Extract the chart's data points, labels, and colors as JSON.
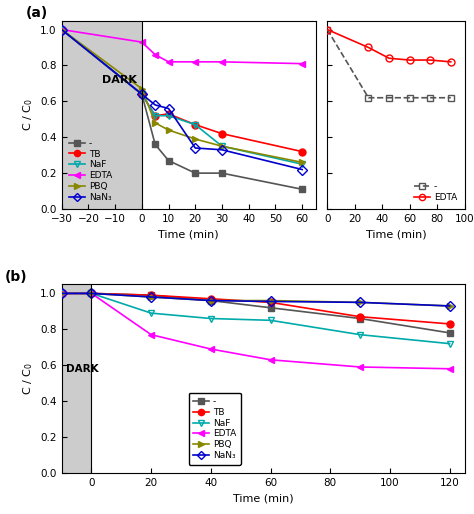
{
  "panel_a_main": {
    "dark_region": [
      -30,
      0
    ],
    "series": {
      "blank": {
        "x": [
          -30,
          0,
          5,
          10,
          20,
          30,
          60
        ],
        "y": [
          1.0,
          0.64,
          0.36,
          0.27,
          0.2,
          0.2,
          0.11
        ],
        "color": "#555555",
        "marker": "s",
        "linestyle": "-",
        "label": "-",
        "markerfacecolor": "#555555"
      },
      "TB": {
        "x": [
          -30,
          0,
          5,
          10,
          20,
          30,
          60
        ],
        "y": [
          1.0,
          0.64,
          0.52,
          0.53,
          0.47,
          0.42,
          0.32
        ],
        "color": "#ff0000",
        "marker": "o",
        "linestyle": "-",
        "label": "TB",
        "markerfacecolor": "#ff0000"
      },
      "NaF": {
        "x": [
          -30,
          0,
          5,
          10,
          20,
          30,
          60
        ],
        "y": [
          1.0,
          0.64,
          0.52,
          0.52,
          0.47,
          0.35,
          0.25
        ],
        "color": "#00aaaa",
        "marker": "v",
        "linestyle": "-",
        "label": "NaF",
        "markerfacecolor": "none"
      },
      "EDTA": {
        "x": [
          -30,
          0,
          5,
          10,
          20,
          30,
          60
        ],
        "y": [
          1.0,
          0.93,
          0.86,
          0.82,
          0.82,
          0.82,
          0.81
        ],
        "color": "#ff00ff",
        "marker": "<",
        "linestyle": "-",
        "label": "EDTA",
        "markerfacecolor": "#ff00ff"
      },
      "PBQ": {
        "x": [
          -30,
          0,
          5,
          10,
          20,
          30,
          60
        ],
        "y": [
          1.0,
          0.67,
          0.48,
          0.44,
          0.39,
          0.35,
          0.26
        ],
        "color": "#888800",
        "marker": ">",
        "linestyle": "-",
        "label": "PBQ",
        "markerfacecolor": "#888800"
      },
      "NaN3": {
        "x": [
          -30,
          0,
          5,
          10,
          20,
          30,
          60
        ],
        "y": [
          1.0,
          0.64,
          0.58,
          0.56,
          0.34,
          0.33,
          0.22
        ],
        "color": "#0000cc",
        "marker": "D",
        "linestyle": "-",
        "label": "NaN₃",
        "markerfacecolor": "none"
      }
    }
  },
  "panel_a_inset": {
    "series": {
      "blank": {
        "x": [
          0,
          30,
          45,
          60,
          75,
          90
        ],
        "y": [
          1.0,
          0.62,
          0.62,
          0.62,
          0.62,
          0.62
        ],
        "color": "#555555",
        "marker": "s",
        "linestyle": "--",
        "label": "-",
        "markerfacecolor": "none"
      },
      "EDTA": {
        "x": [
          0,
          30,
          45,
          60,
          75,
          90
        ],
        "y": [
          1.0,
          0.9,
          0.84,
          0.83,
          0.83,
          0.82
        ],
        "color": "#ff0000",
        "marker": "o",
        "linestyle": "-",
        "label": "EDTA",
        "markerfacecolor": "none"
      }
    }
  },
  "panel_b": {
    "dark_region": [
      -10,
      0
    ],
    "series": {
      "blank": {
        "x": [
          -10,
          0,
          20,
          40,
          60,
          90,
          120
        ],
        "y": [
          1.0,
          1.0,
          0.99,
          0.96,
          0.92,
          0.86,
          0.78
        ],
        "color": "#555555",
        "marker": "s",
        "linestyle": "-",
        "label": "-",
        "markerfacecolor": "#555555"
      },
      "TB": {
        "x": [
          -10,
          0,
          20,
          40,
          60,
          90,
          120
        ],
        "y": [
          1.0,
          1.0,
          0.99,
          0.97,
          0.95,
          0.87,
          0.83
        ],
        "color": "#ff0000",
        "marker": "o",
        "linestyle": "-",
        "label": "TB",
        "markerfacecolor": "#ff0000"
      },
      "NaF": {
        "x": [
          -10,
          0,
          20,
          40,
          60,
          90,
          120
        ],
        "y": [
          1.0,
          1.0,
          0.89,
          0.86,
          0.85,
          0.77,
          0.72
        ],
        "color": "#00aaaa",
        "marker": "v",
        "linestyle": "-",
        "label": "NaF",
        "markerfacecolor": "none"
      },
      "EDTA": {
        "x": [
          -10,
          0,
          20,
          40,
          60,
          90,
          120
        ],
        "y": [
          1.0,
          1.0,
          0.77,
          0.69,
          0.63,
          0.59,
          0.58
        ],
        "color": "#ff00ff",
        "marker": "<",
        "linestyle": "-",
        "label": "EDTA",
        "markerfacecolor": "#ff00ff"
      },
      "PBQ": {
        "x": [
          -10,
          0,
          20,
          40,
          60,
          90,
          120
        ],
        "y": [
          1.0,
          1.0,
          0.98,
          0.96,
          0.96,
          0.95,
          0.93
        ],
        "color": "#888800",
        "marker": ">",
        "linestyle": "-",
        "label": "PBQ",
        "markerfacecolor": "#888800"
      },
      "NaN3": {
        "x": [
          -10,
          0,
          20,
          40,
          60,
          90,
          120
        ],
        "y": [
          1.0,
          1.0,
          0.98,
          0.96,
          0.955,
          0.95,
          0.93
        ],
        "color": "#0000cc",
        "marker": "D",
        "linestyle": "-",
        "label": "NaN₃",
        "markerfacecolor": "none"
      }
    }
  },
  "bg_color": "#cccccc",
  "markersize": 5,
  "linewidth": 1.2
}
